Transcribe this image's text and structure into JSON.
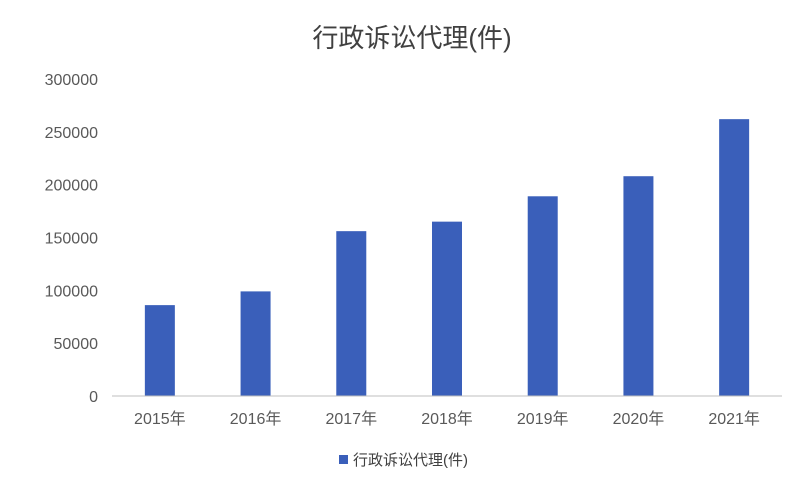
{
  "chart_data": {
    "type": "bar",
    "title": "行政诉讼代理(件)",
    "categories": [
      "2015年",
      "2016年",
      "2017年",
      "2018年",
      "2019年",
      "2020年",
      "2021年"
    ],
    "series": [
      {
        "name": "行政诉讼代理(件)",
        "values": [
          86000,
          99000,
          156000,
          165000,
          189000,
          208000,
          262000
        ],
        "color": "#3a5fba"
      }
    ],
    "yticks": [
      "0",
      "50000",
      "100000",
      "150000",
      "200000",
      "250000",
      "300000"
    ],
    "ylim": [
      0,
      300000
    ],
    "xlabel": "",
    "ylabel": "",
    "grid": false,
    "legend_position": "bottom"
  }
}
